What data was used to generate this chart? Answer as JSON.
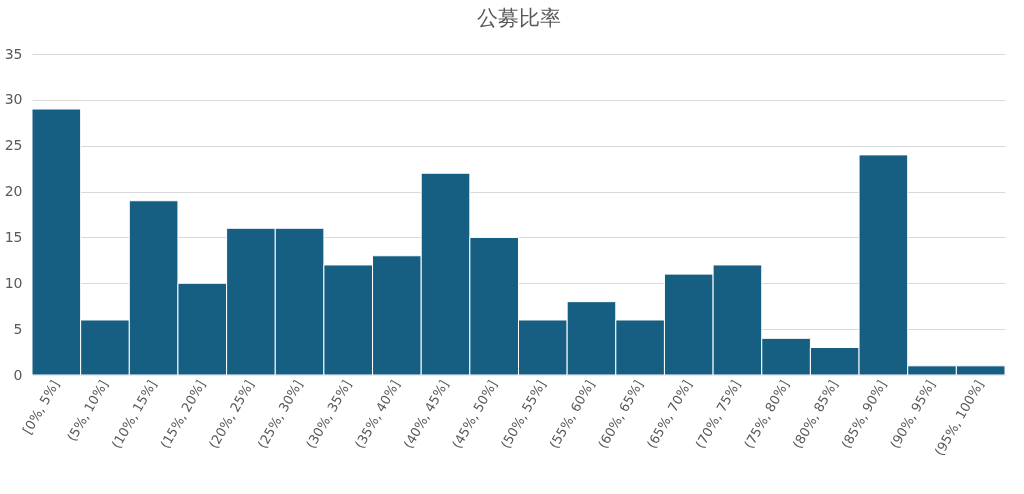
{
  "chart_data": {
    "type": "bar",
    "title": "公募比率",
    "categories": [
      "[0%, 5%]",
      "(5%, 10%]",
      "(10%, 15%]",
      "(15%, 20%]",
      "(20%, 25%]",
      "(25%, 30%]",
      "(30%, 35%]",
      "(35%, 40%]",
      "(40%, 45%]",
      "(45%, 50%]",
      "(50%, 55%]",
      "(55%, 60%]",
      "(60%, 65%]",
      "(65%, 70%]",
      "(70%, 75%]",
      "(75%, 80%]",
      "(80%, 85%]",
      "(85%, 90%]",
      "(90%, 95%]",
      "(95%, 100%]"
    ],
    "values": [
      29,
      6,
      19,
      10,
      16,
      16,
      12,
      13,
      22,
      15,
      6,
      8,
      6,
      11,
      12,
      4,
      3,
      24,
      1,
      1
    ],
    "color": "#175f82",
    "ylim": [
      0,
      35
    ],
    "yticks": [
      0,
      5,
      10,
      15,
      20,
      25,
      30,
      35
    ],
    "grid": true
  }
}
